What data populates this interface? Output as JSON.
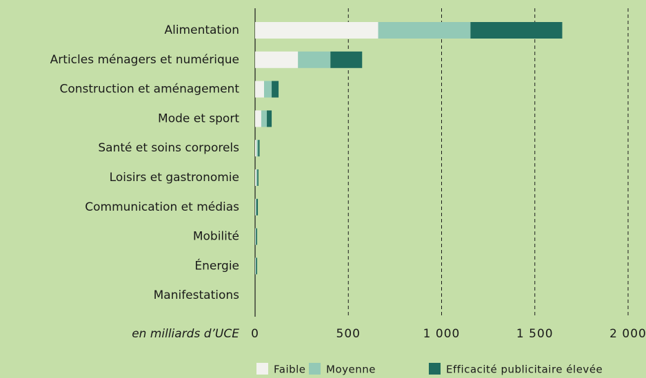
{
  "chart_data": {
    "type": "stacked-barh",
    "categories": [
      "Alimentation",
      "Articles ménagers et numérique",
      "Construction et aménagement",
      "Mode et sport",
      "Santé et soins corporels",
      "Loisirs et gastronomie",
      "Communication et médias",
      "Mobilité",
      "Énergie",
      "Manifestations"
    ],
    "series": [
      {
        "name": "Faible",
        "color": "#f2f2ee",
        "values": [
          660,
          230,
          48,
          33,
          8,
          6,
          3,
          2,
          2,
          0
        ]
      },
      {
        "name": "Moyenne",
        "color": "#93c9b6",
        "values": [
          495,
          174,
          41,
          30,
          8,
          6,
          4,
          3,
          3,
          0
        ]
      },
      {
        "name": "Efficacité publicitaire élevée",
        "color": "#1f6b5e",
        "values": [
          492,
          170,
          37,
          26,
          8,
          6,
          8,
          6,
          6,
          0
        ]
      }
    ],
    "x_label": "en milliards d’UCE",
    "xlim": [
      0,
      2000
    ],
    "xticks": [
      0,
      500,
      {
        "value": 1000,
        "label": "1 000"
      },
      {
        "value": 1500,
        "label": "1 500"
      },
      {
        "value": 2000,
        "label": "2 000"
      }
    ],
    "grid": true,
    "legend": "bottom"
  }
}
